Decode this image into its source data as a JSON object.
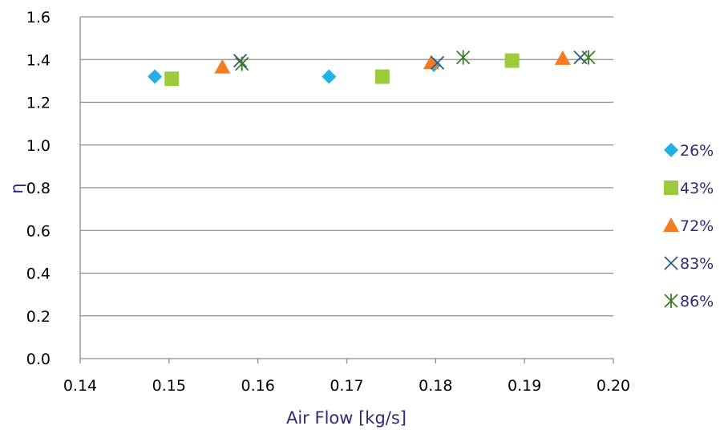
{
  "chart_data": {
    "type": "scatter",
    "title": "",
    "xlabel": "Air Flow [kg/s]",
    "ylabel": "η",
    "xlim": [
      0.14,
      0.2
    ],
    "ylim": [
      0.0,
      1.6
    ],
    "xticks": [
      "0.14",
      "0.15",
      "0.16",
      "0.17",
      "0.18",
      "0.19",
      "0.20"
    ],
    "yticks": [
      "0.0",
      "0.2",
      "0.4",
      "0.6",
      "0.8",
      "1.0",
      "1.2",
      "1.4",
      "1.6"
    ],
    "grid": "horizontal",
    "legend_position": "right",
    "series": [
      {
        "name": "26%",
        "marker": "diamond",
        "color": "#1FB2E6",
        "x": [
          0.1484,
          0.168,
          0.1798
        ],
        "y": [
          1.32,
          1.32,
          1.375
        ]
      },
      {
        "name": "43%",
        "marker": "square",
        "color": "#9BCB3B",
        "x": [
          0.1503,
          0.174,
          0.1886
        ],
        "y": [
          1.31,
          1.32,
          1.395
        ]
      },
      {
        "name": "72%",
        "marker": "triangle",
        "color": "#F47B20",
        "x": [
          0.156,
          0.1795,
          0.1943
        ],
        "y": [
          1.365,
          1.385,
          1.405
        ]
      },
      {
        "name": "83%",
        "marker": "x",
        "color": "#2E5E7E",
        "x": [
          0.158,
          0.1802,
          0.1963
        ],
        "y": [
          1.395,
          1.385,
          1.41
        ]
      },
      {
        "name": "86%",
        "marker": "asterisk",
        "color": "#3B7D23",
        "x": [
          0.1582,
          0.1831,
          0.1972
        ],
        "y": [
          1.38,
          1.41,
          1.41
        ]
      }
    ]
  }
}
